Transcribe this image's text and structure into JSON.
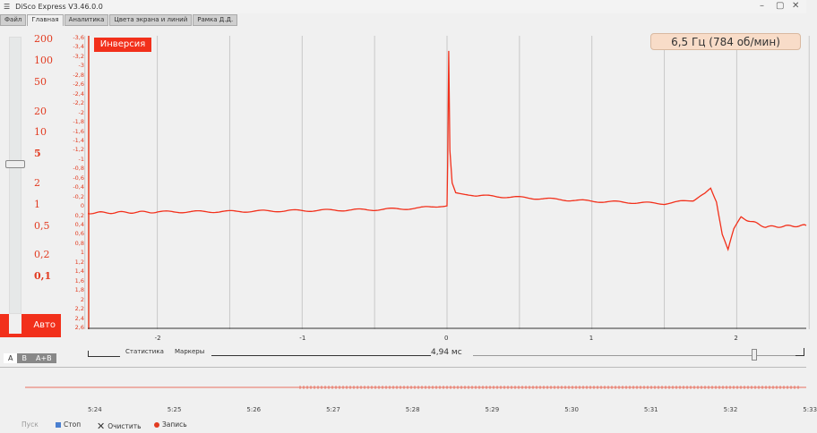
{
  "window": {
    "title": "DiSco Express V3.46.0.0",
    "controls": [
      "minimize",
      "maximize",
      "close"
    ]
  },
  "tabs": [
    {
      "label": "Файл"
    },
    {
      "label": "Главная",
      "active": true
    },
    {
      "label": "Аналитика"
    },
    {
      "label": "Цвета экрана и линий"
    },
    {
      "label": "Рамка Д.Д."
    }
  ],
  "scale": {
    "labels": [
      "200",
      "100",
      "50",
      "20",
      "10",
      "5",
      "2",
      "1",
      "0,5",
      "0,2",
      "0,1"
    ],
    "selected": "5",
    "auto_label": "Авто"
  },
  "channel_tabs": [
    {
      "label": "A",
      "active": true
    },
    {
      "label": "B"
    },
    {
      "label": "A+B"
    }
  ],
  "scope": {
    "inversion_label": "Инверсия",
    "frequency": "6,5 Гц (784 об/мин)",
    "trace_color": "#f2301b"
  },
  "chart_data": {
    "type": "line",
    "yticks": [
      "-3,6",
      "-3,4",
      "-3,2",
      "-3",
      "-2,8",
      "-2,6",
      "-2,4",
      "-2,2",
      "-2",
      "-1,8",
      "-1,6",
      "-1,4",
      "-1,2",
      "-1",
      "-0,8",
      "-0,6",
      "-0,4",
      "-0,2",
      "0",
      "0,2",
      "0,4",
      "0,6",
      "0,8",
      "1",
      "1,2",
      "1,4",
      "1,6",
      "1,8",
      "2",
      "2,2",
      "2,4",
      "2,6"
    ],
    "xticks": [
      "-2",
      "-1",
      "0",
      "1",
      "2"
    ],
    "ylim": [
      -3.6,
      2.6
    ],
    "y_inverted": true,
    "xlim": [
      -2.48,
      2.48
    ],
    "grid": true,
    "x": [
      -2.48,
      -2,
      -1.5,
      -1,
      -0.5,
      -0.2,
      -0.05,
      0,
      0.005,
      0.012,
      0.02,
      0.035,
      0.06,
      0.2,
      0.5,
      1,
      1.5,
      1.7,
      1.78,
      1.82,
      1.86,
      1.9,
      1.94,
      1.98,
      2.03,
      2.2,
      2.48
    ],
    "y": [
      0.15,
      0.13,
      0.12,
      0.1,
      0.08,
      0.05,
      0,
      0.0,
      -1.0,
      -3.3,
      -1.2,
      -0.5,
      -0.3,
      -0.22,
      -0.18,
      -0.1,
      -0.05,
      -0.12,
      -0.25,
      -0.38,
      -0.1,
      0.6,
      0.95,
      0.5,
      0.25,
      0.45,
      0.42
    ]
  },
  "bottom": {
    "statistics": "Статистика",
    "markers": "Маркеры",
    "timebase": "4,94 мс"
  },
  "timeline": {
    "labels": [
      "5:24",
      "5:25",
      "5:26",
      "5:27",
      "5:28",
      "5:29",
      "5:30",
      "5:31",
      "5:32",
      "5:33"
    ]
  },
  "controls": {
    "start": "Пуск",
    "stop": "Стоп",
    "clear": "Очистить",
    "record": "Запись"
  }
}
